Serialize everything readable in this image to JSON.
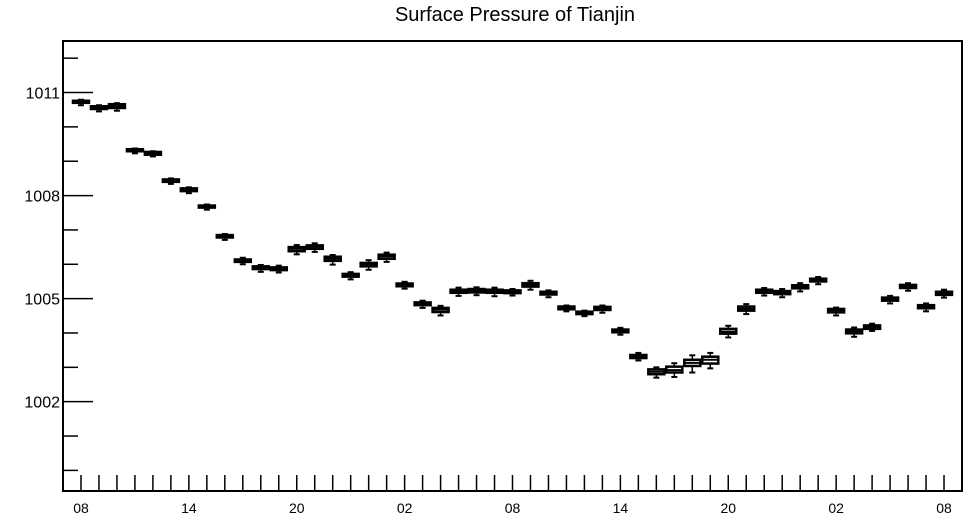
{
  "chart_data": {
    "type": "boxplot",
    "title": "Surface Pressure of Tianjin",
    "xlabel": "",
    "ylabel": "",
    "ylim": [
      999.4,
      1012.5
    ],
    "y_ticks": [
      1002,
      1005,
      1008,
      1011
    ],
    "y_tick_labels": [
      "1002",
      "1005",
      "1008",
      "1011"
    ],
    "x_tick_labels": [
      "08",
      "14",
      "20",
      "02",
      "08",
      "14",
      "20",
      "02",
      "08"
    ],
    "x_tick_positions": [
      0,
      6,
      12,
      18,
      24,
      30,
      36,
      42,
      48
    ],
    "x_range": [
      -1,
      49
    ],
    "boxes": [
      {
        "x": 0,
        "whislo": 1010.63,
        "q1": 1010.7,
        "med": 1010.73,
        "q3": 1010.76,
        "whishi": 1010.79
      },
      {
        "x": 1,
        "whislo": 1010.45,
        "q1": 1010.52,
        "med": 1010.56,
        "q3": 1010.6,
        "whishi": 1010.63
      },
      {
        "x": 2,
        "whislo": 1010.47,
        "q1": 1010.55,
        "med": 1010.6,
        "q3": 1010.66,
        "whishi": 1010.69
      },
      {
        "x": 3,
        "whislo": 1009.23,
        "q1": 1009.29,
        "med": 1009.32,
        "q3": 1009.35,
        "whishi": 1009.37
      },
      {
        "x": 4,
        "whislo": 1009.14,
        "q1": 1009.19,
        "med": 1009.22,
        "q3": 1009.27,
        "whishi": 1009.29
      },
      {
        "x": 5,
        "whislo": 1008.34,
        "q1": 1008.4,
        "med": 1008.43,
        "q3": 1008.47,
        "whishi": 1008.5
      },
      {
        "x": 6,
        "whislo": 1008.07,
        "q1": 1008.13,
        "med": 1008.16,
        "q3": 1008.21,
        "whishi": 1008.24
      },
      {
        "x": 7,
        "whislo": 1007.59,
        "q1": 1007.65,
        "med": 1007.68,
        "q3": 1007.71,
        "whishi": 1007.74
      },
      {
        "x": 8,
        "whislo": 1006.71,
        "q1": 1006.78,
        "med": 1006.81,
        "q3": 1006.85,
        "whishi": 1006.88
      },
      {
        "x": 9,
        "whislo": 1006.0,
        "q1": 1006.07,
        "med": 1006.1,
        "q3": 1006.14,
        "whishi": 1006.19
      },
      {
        "x": 10,
        "whislo": 1005.78,
        "q1": 1005.86,
        "med": 1005.9,
        "q3": 1005.94,
        "whishi": 1005.98
      },
      {
        "x": 11,
        "whislo": 1005.76,
        "q1": 1005.83,
        "med": 1005.87,
        "q3": 1005.91,
        "whishi": 1005.96
      },
      {
        "x": 12,
        "whislo": 1006.29,
        "q1": 1006.38,
        "med": 1006.45,
        "q3": 1006.5,
        "whishi": 1006.56
      },
      {
        "x": 13,
        "whislo": 1006.36,
        "q1": 1006.45,
        "med": 1006.51,
        "q3": 1006.55,
        "whishi": 1006.61
      },
      {
        "x": 14,
        "whislo": 1005.99,
        "q1": 1006.1,
        "med": 1006.16,
        "q3": 1006.22,
        "whishi": 1006.27
      },
      {
        "x": 15,
        "whislo": 1005.56,
        "q1": 1005.64,
        "med": 1005.68,
        "q3": 1005.72,
        "whishi": 1005.77
      },
      {
        "x": 16,
        "whislo": 1005.84,
        "q1": 1005.94,
        "med": 1006.0,
        "q3": 1006.04,
        "whishi": 1006.12
      },
      {
        "x": 17,
        "whislo": 1006.07,
        "q1": 1006.16,
        "med": 1006.23,
        "q3": 1006.28,
        "whishi": 1006.34
      },
      {
        "x": 18,
        "whislo": 1005.29,
        "q1": 1005.36,
        "med": 1005.4,
        "q3": 1005.44,
        "whishi": 1005.49
      },
      {
        "x": 19,
        "whislo": 1004.73,
        "q1": 1004.81,
        "med": 1004.85,
        "q3": 1004.89,
        "whishi": 1004.94
      },
      {
        "x": 20,
        "whislo": 1004.51,
        "q1": 1004.61,
        "med": 1004.68,
        "q3": 1004.73,
        "whishi": 1004.79
      },
      {
        "x": 21,
        "whislo": 1005.08,
        "q1": 1005.17,
        "med": 1005.22,
        "q3": 1005.26,
        "whishi": 1005.32
      },
      {
        "x": 22,
        "whislo": 1005.1,
        "q1": 1005.18,
        "med": 1005.23,
        "q3": 1005.28,
        "whishi": 1005.33
      },
      {
        "x": 23,
        "whislo": 1005.07,
        "q1": 1005.17,
        "med": 1005.22,
        "q3": 1005.26,
        "whishi": 1005.32
      },
      {
        "x": 24,
        "whislo": 1005.09,
        "q1": 1005.16,
        "med": 1005.2,
        "q3": 1005.24,
        "whishi": 1005.28
      },
      {
        "x": 25,
        "whislo": 1005.26,
        "q1": 1005.35,
        "med": 1005.41,
        "q3": 1005.45,
        "whishi": 1005.52
      },
      {
        "x": 26,
        "whislo": 1005.04,
        "q1": 1005.12,
        "med": 1005.16,
        "q3": 1005.2,
        "whishi": 1005.24
      },
      {
        "x": 27,
        "whislo": 1004.63,
        "q1": 1004.69,
        "med": 1004.73,
        "q3": 1004.77,
        "whishi": 1004.8
      },
      {
        "x": 28,
        "whislo": 1004.49,
        "q1": 1004.55,
        "med": 1004.59,
        "q3": 1004.62,
        "whishi": 1004.65
      },
      {
        "x": 29,
        "whislo": 1004.59,
        "q1": 1004.67,
        "med": 1004.72,
        "q3": 1004.76,
        "whishi": 1004.8
      },
      {
        "x": 30,
        "whislo": 1003.95,
        "q1": 1004.02,
        "med": 1004.06,
        "q3": 1004.1,
        "whishi": 1004.15
      },
      {
        "x": 31,
        "whislo": 1003.2,
        "q1": 1003.27,
        "med": 1003.32,
        "q3": 1003.36,
        "whishi": 1003.42
      },
      {
        "x": 32,
        "whislo": 1002.7,
        "q1": 1002.8,
        "med": 1002.87,
        "q3": 1002.94,
        "whishi": 1003.0
      },
      {
        "x": 33,
        "whislo": 1002.72,
        "q1": 1002.85,
        "med": 1002.92,
        "q3": 1003.02,
        "whishi": 1003.12
      },
      {
        "x": 34,
        "whislo": 1002.85,
        "q1": 1003.04,
        "med": 1003.13,
        "q3": 1003.22,
        "whishi": 1003.35
      },
      {
        "x": 35,
        "whislo": 1002.97,
        "q1": 1003.11,
        "med": 1003.22,
        "q3": 1003.31,
        "whishi": 1003.42
      },
      {
        "x": 36,
        "whislo": 1003.87,
        "q1": 1003.98,
        "med": 1004.04,
        "q3": 1004.12,
        "whishi": 1004.21
      },
      {
        "x": 37,
        "whislo": 1004.55,
        "q1": 1004.65,
        "med": 1004.71,
        "q3": 1004.77,
        "whishi": 1004.84
      },
      {
        "x": 38,
        "whislo": 1005.09,
        "q1": 1005.17,
        "med": 1005.22,
        "q3": 1005.26,
        "whishi": 1005.31
      },
      {
        "x": 39,
        "whislo": 1005.04,
        "q1": 1005.13,
        "med": 1005.18,
        "q3": 1005.22,
        "whishi": 1005.28
      },
      {
        "x": 40,
        "whislo": 1005.21,
        "q1": 1005.3,
        "med": 1005.35,
        "q3": 1005.39,
        "whishi": 1005.45
      },
      {
        "x": 41,
        "whislo": 1005.42,
        "q1": 1005.5,
        "med": 1005.55,
        "q3": 1005.58,
        "whishi": 1005.63
      },
      {
        "x": 42,
        "whislo": 1004.51,
        "q1": 1004.6,
        "med": 1004.66,
        "q3": 1004.7,
        "whishi": 1004.74
      },
      {
        "x": 43,
        "whislo": 1003.89,
        "q1": 1003.99,
        "med": 1004.05,
        "q3": 1004.1,
        "whishi": 1004.16
      },
      {
        "x": 44,
        "whislo": 1004.06,
        "q1": 1004.12,
        "med": 1004.17,
        "q3": 1004.22,
        "whishi": 1004.27
      },
      {
        "x": 45,
        "whislo": 1004.86,
        "q1": 1004.94,
        "med": 1004.99,
        "q3": 1005.03,
        "whishi": 1005.08
      },
      {
        "x": 46,
        "whislo": 1005.23,
        "q1": 1005.31,
        "med": 1005.36,
        "q3": 1005.4,
        "whishi": 1005.45
      },
      {
        "x": 47,
        "whislo": 1004.63,
        "q1": 1004.72,
        "med": 1004.77,
        "q3": 1004.81,
        "whishi": 1004.86
      },
      {
        "x": 48,
        "whislo": 1005.03,
        "q1": 1005.11,
        "med": 1005.16,
        "q3": 1005.2,
        "whishi": 1005.26
      }
    ],
    "box_color": "#000000",
    "grid": false
  }
}
